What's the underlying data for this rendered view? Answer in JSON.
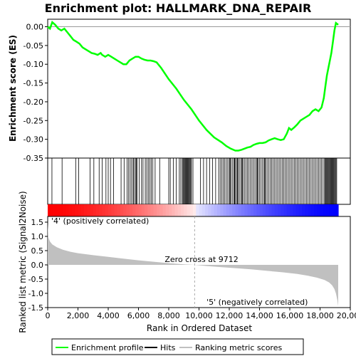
{
  "chart_data": {
    "type": "line",
    "title": "Enrichment plot: HALLMARK_DNA_REPAIR",
    "colors": {
      "profile": "#00ff00",
      "hits": "#000000",
      "metric_fill": "#c0c0c0",
      "positive": "#ff0000",
      "negative": "#0000ff",
      "label_positive": "#cc0000",
      "label_negative": "#3333cc"
    },
    "top_panel": {
      "ylabel": "Enrichment score (ES)",
      "ylim": [
        -0.35,
        0.02
      ],
      "yticks": [
        0.0,
        -0.05,
        -0.1,
        -0.15,
        -0.2,
        -0.25,
        -0.3,
        -0.35
      ],
      "ytick_labels": [
        "0.00",
        "-0.05",
        "-0.10",
        "-0.15",
        "-0.20",
        "-0.25",
        "-0.30",
        "-0.35"
      ],
      "series": [
        {
          "name": "Enrichment profile",
          "x": [
            0,
            150,
            300,
            500,
            700,
            900,
            1100,
            1300,
            1500,
            1700,
            1900,
            2100,
            2300,
            2500,
            2700,
            2900,
            3100,
            3300,
            3500,
            3600,
            3800,
            4000,
            4200,
            4400,
            4600,
            4800,
            5000,
            5200,
            5400,
            5600,
            5800,
            6000,
            6200,
            6400,
            6600,
            6800,
            7000,
            7200,
            7500,
            8000,
            8500,
            9000,
            9500,
            10000,
            10500,
            11000,
            11500,
            11800,
            12100,
            12400,
            12600,
            12800,
            13000,
            13200,
            13400,
            13600,
            13800,
            14000,
            14200,
            14400,
            14600,
            14800,
            15000,
            15200,
            15400,
            15600,
            15800,
            15950,
            16100,
            16300,
            16500,
            16700,
            16900,
            17100,
            17300,
            17500,
            17700,
            17900,
            18100,
            18250,
            18350,
            18450,
            18550,
            18650,
            18750,
            18850,
            18950,
            19050,
            19200
          ],
          "y": [
            0.0,
            -0.005,
            0.012,
            0.005,
            -0.005,
            -0.01,
            -0.005,
            -0.015,
            -0.025,
            -0.035,
            -0.04,
            -0.045,
            -0.055,
            -0.06,
            -0.065,
            -0.07,
            -0.072,
            -0.075,
            -0.07,
            -0.075,
            -0.08,
            -0.075,
            -0.08,
            -0.085,
            -0.09,
            -0.095,
            -0.1,
            -0.1,
            -0.09,
            -0.085,
            -0.08,
            -0.08,
            -0.085,
            -0.088,
            -0.09,
            -0.09,
            -0.092,
            -0.095,
            -0.11,
            -0.14,
            -0.165,
            -0.195,
            -0.22,
            -0.25,
            -0.275,
            -0.295,
            -0.308,
            -0.318,
            -0.325,
            -0.33,
            -0.33,
            -0.328,
            -0.325,
            -0.322,
            -0.32,
            -0.315,
            -0.312,
            -0.31,
            -0.31,
            -0.308,
            -0.303,
            -0.3,
            -0.297,
            -0.3,
            -0.302,
            -0.3,
            -0.285,
            -0.27,
            -0.275,
            -0.268,
            -0.26,
            -0.25,
            -0.245,
            -0.24,
            -0.235,
            -0.225,
            -0.22,
            -0.225,
            -0.215,
            -0.19,
            -0.16,
            -0.13,
            -0.11,
            -0.09,
            -0.07,
            -0.04,
            -0.01,
            0.01,
            0.005
          ]
        }
      ]
    },
    "hits": [
      280,
      950,
      1850,
      2050,
      2800,
      3050,
      3400,
      3600,
      3850,
      4000,
      4150,
      4350,
      4850,
      5050,
      5250,
      5350,
      5450,
      5550,
      5650,
      5700,
      5800,
      5850,
      5900,
      6050,
      6200,
      6300,
      6450,
      6550,
      6650,
      6750,
      6850,
      6950,
      7100,
      7400,
      8000,
      8100,
      8300,
      8500,
      8700,
      8800,
      8900,
      8950,
      9000,
      9050,
      9100,
      9150,
      9200,
      9250,
      9300,
      9350,
      9400,
      9450,
      9500,
      9600,
      10100,
      10300,
      10500,
      10700,
      10900,
      11100,
      11300,
      11400,
      11500,
      11600,
      11700,
      11800,
      11900,
      12000,
      12050,
      12100,
      12200,
      12300,
      12350,
      12400,
      12500,
      12550,
      12600,
      12700,
      12800,
      12850,
      12900,
      13000,
      13100,
      13200,
      13300,
      13400,
      13500,
      13600,
      13700,
      13800,
      13850,
      13900,
      14000,
      14100,
      14200,
      14300,
      14350,
      14400,
      14500,
      14600,
      14700,
      14800,
      14900,
      15000,
      15100,
      15200,
      15300,
      15400,
      15500,
      15600,
      15700,
      15800,
      15900,
      16000,
      16100,
      16200,
      16300,
      16400,
      16500,
      16600,
      16700,
      16800,
      16900,
      17000,
      17100,
      17200,
      17300,
      17400,
      17500,
      17600,
      17700,
      17800,
      17900,
      18000,
      18100,
      18200,
      18300,
      18350,
      18400,
      18450,
      18500,
      18550,
      18600,
      18650,
      18700,
      18750,
      18800,
      18850,
      18900,
      18950,
      19000,
      19050,
      19100
    ],
    "bottom_panel": {
      "xlabel": "Rank in Ordered Dataset",
      "ylabel": "Ranked list metric (Signal2Noise)",
      "ylim": [
        -1.5,
        1.7
      ],
      "yticks": [
        1.5,
        1.0,
        0.5,
        0.0,
        -0.5,
        -1.0,
        -1.5
      ],
      "ytick_labels": [
        "1.5",
        "1.0",
        "0.5",
        "0.0",
        "-0.5",
        "-1.0",
        "-1.5"
      ],
      "metric": {
        "x": [
          0,
          50,
          150,
          300,
          600,
          1000,
          1500,
          2000,
          3000,
          4000,
          5000,
          6000,
          7000,
          8000,
          9000,
          9712,
          10500,
          11500,
          12500,
          13500,
          14500,
          15500,
          16500,
          17200,
          17800,
          18300,
          18600,
          18800,
          18950,
          19050,
          19150,
          19200
        ],
        "y": [
          1.45,
          0.95,
          0.82,
          0.72,
          0.62,
          0.53,
          0.46,
          0.41,
          0.34,
          0.28,
          0.22,
          0.16,
          0.11,
          0.06,
          0.02,
          0.0,
          -0.04,
          -0.08,
          -0.12,
          -0.16,
          -0.21,
          -0.26,
          -0.32,
          -0.38,
          -0.45,
          -0.53,
          -0.62,
          -0.72,
          -0.85,
          -1.0,
          -1.25,
          -1.45
        ]
      },
      "zero_cross": 9712,
      "zero_cross_label": "Zero cross at 9712",
      "positive_label": "'4' (positively correlated)",
      "negative_label": "'5' (negatively correlated)"
    },
    "x_axis": {
      "xlim": [
        0,
        20000
      ],
      "data_max": 19200,
      "ticks": [
        0,
        2000,
        4000,
        6000,
        8000,
        10000,
        12000,
        14000,
        16000,
        18000,
        20000
      ],
      "tick_labels": [
        "0",
        "2,000",
        "4,000",
        "6,000",
        "8,000",
        "10,000",
        "12,000",
        "14,000",
        "16,000",
        "18,000",
        "20,000"
      ]
    },
    "legend": {
      "placement": "bottom",
      "entries": [
        "Enrichment profile",
        "Hits",
        "Ranking metric scores"
      ]
    }
  }
}
